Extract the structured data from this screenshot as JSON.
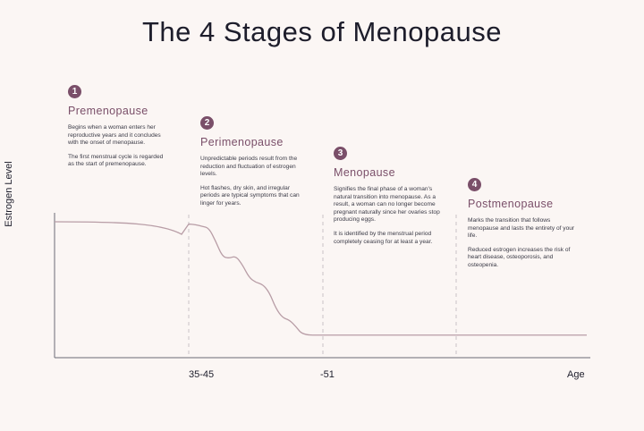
{
  "title": "The 4 Stages of Menopause",
  "chart_data": {
    "type": "line",
    "title": "The 4 Stages of Menopause",
    "xlabel": "Age",
    "ylabel": "Estrogen Level",
    "tick_labels": [
      "35-45",
      "-51"
    ],
    "grid": false,
    "series": [
      {
        "values": [
          [
            0,
            0.98
          ],
          [
            0.05,
            0.975
          ],
          [
            0.1,
            0.96
          ],
          [
            0.15,
            0.9
          ],
          [
            0.2,
            0.82
          ],
          [
            0.25,
            0.74
          ],
          [
            0.3,
            0.7
          ],
          [
            0.35,
            0.66
          ],
          [
            0.4,
            0.6
          ],
          [
            0.45,
            0.55
          ],
          [
            0.5,
            0.5
          ],
          [
            0.55,
            0.42
          ],
          [
            0.6,
            0.35
          ],
          [
            0.65,
            0.27
          ],
          [
            0.7,
            0.2
          ],
          [
            0.75,
            0.12
          ],
          [
            0.8,
            0.04
          ],
          [
            0.85,
            0.01
          ],
          [
            1,
            0.01
          ],
          [
            1.5,
            0.01
          ],
          [
            2,
            0.01
          ]
        ]
      }
    ]
  },
  "stages": [
    {
      "number": "1",
      "name": "Premenopause",
      "paragraphs": [
        "Begins when a woman enters her reproductive years and it concludes with the onset of menopause.",
        "The first menstrual cycle is regarded as the start of premenopause."
      ]
    },
    {
      "number": "2",
      "name": "Perimenopause",
      "paragraphs": [
        "Unpredictable periods result from the reduction and fluctuation of estrogen levels.",
        "Hot flashes, dry skin, and irregular periods are typical symptoms that can linger for years."
      ]
    },
    {
      "number": "3",
      "name": "Menopause",
      "paragraphs": [
        "Signifies the final phase of a woman's natural transition into menopause. As a result, a woman can no longer become pregnant naturally since her ovaries stop producing eggs.",
        "It is identified by the menstrual period completely ceasing for at least a year."
      ]
    },
    {
      "number": "4",
      "name": "Postmenopause",
      "paragraphs": [
        "Marks the transition that follows menopause and lasts the entirety of your life.",
        "Reduced estrogen increases the risk of heart disease, osteoporosis, and osteopenia."
      ]
    }
  ]
}
